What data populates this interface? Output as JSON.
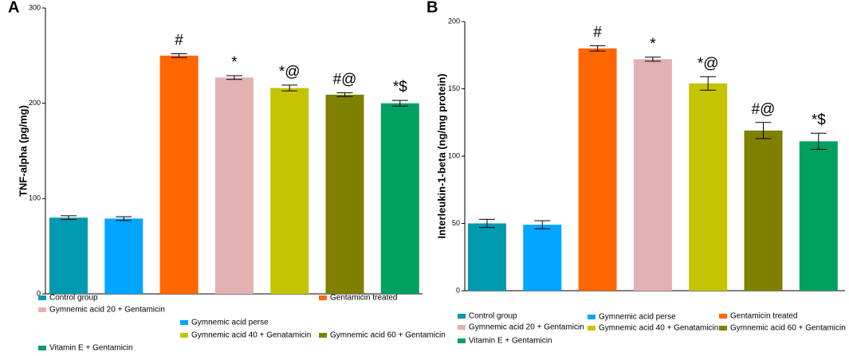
{
  "chart_data": [
    {
      "type": "bar",
      "panel": "A",
      "ylabel": "TNF-alpha (pg/mg)",
      "categories": [
        "Control group",
        "Gymnemic acid perse",
        "Gentamicin treated",
        "Gymnemic acid 20 + Gentamicin",
        "Gymnemic acid 40 + Genatamicin",
        "Gymnemic acid 60 + Gentamicin",
        "Vitamin E + Gentamicin"
      ],
      "values": [
        80,
        79,
        250,
        227,
        216,
        209,
        200
      ],
      "errors": [
        2,
        2,
        2,
        2,
        3,
        2,
        3
      ],
      "annotations": [
        null,
        null,
        "#",
        "*",
        "*@",
        "#@",
        "*$"
      ],
      "colors": [
        "#0099b0",
        "#00a6ff",
        "#ff6600",
        "#e3b1b1",
        "#c4c400",
        "#808000",
        "#00a060"
      ],
      "ylim": [
        0,
        300
      ],
      "yticks": [
        0,
        100,
        200,
        300
      ]
    },
    {
      "type": "bar",
      "panel": "B",
      "ylabel": "Interleukin-1-beta (ng/mg protein)",
      "categories": [
        "Control group",
        "Gymnemic acid perse",
        "Gentamicin treated",
        "Gymnemic acid 20 + Gentamicin",
        "Gymnemic acid 40 + Genatamicin",
        "Gymnemic acid 60 + Gentamicin",
        "Vitamin E + Gentamicin"
      ],
      "values": [
        50,
        49,
        180,
        172,
        154,
        119,
        111
      ],
      "errors": [
        3,
        3,
        2,
        1.5,
        5,
        6,
        6
      ],
      "annotations": [
        null,
        null,
        "#",
        "*",
        "*@",
        "#@",
        "*$"
      ],
      "colors": [
        "#0099b0",
        "#00a6ff",
        "#ff6600",
        "#e3b1b1",
        "#c4c400",
        "#808000",
        "#00a060"
      ],
      "ylim": [
        0,
        200
      ],
      "yticks": [
        0,
        50,
        100,
        150,
        200
      ]
    }
  ]
}
